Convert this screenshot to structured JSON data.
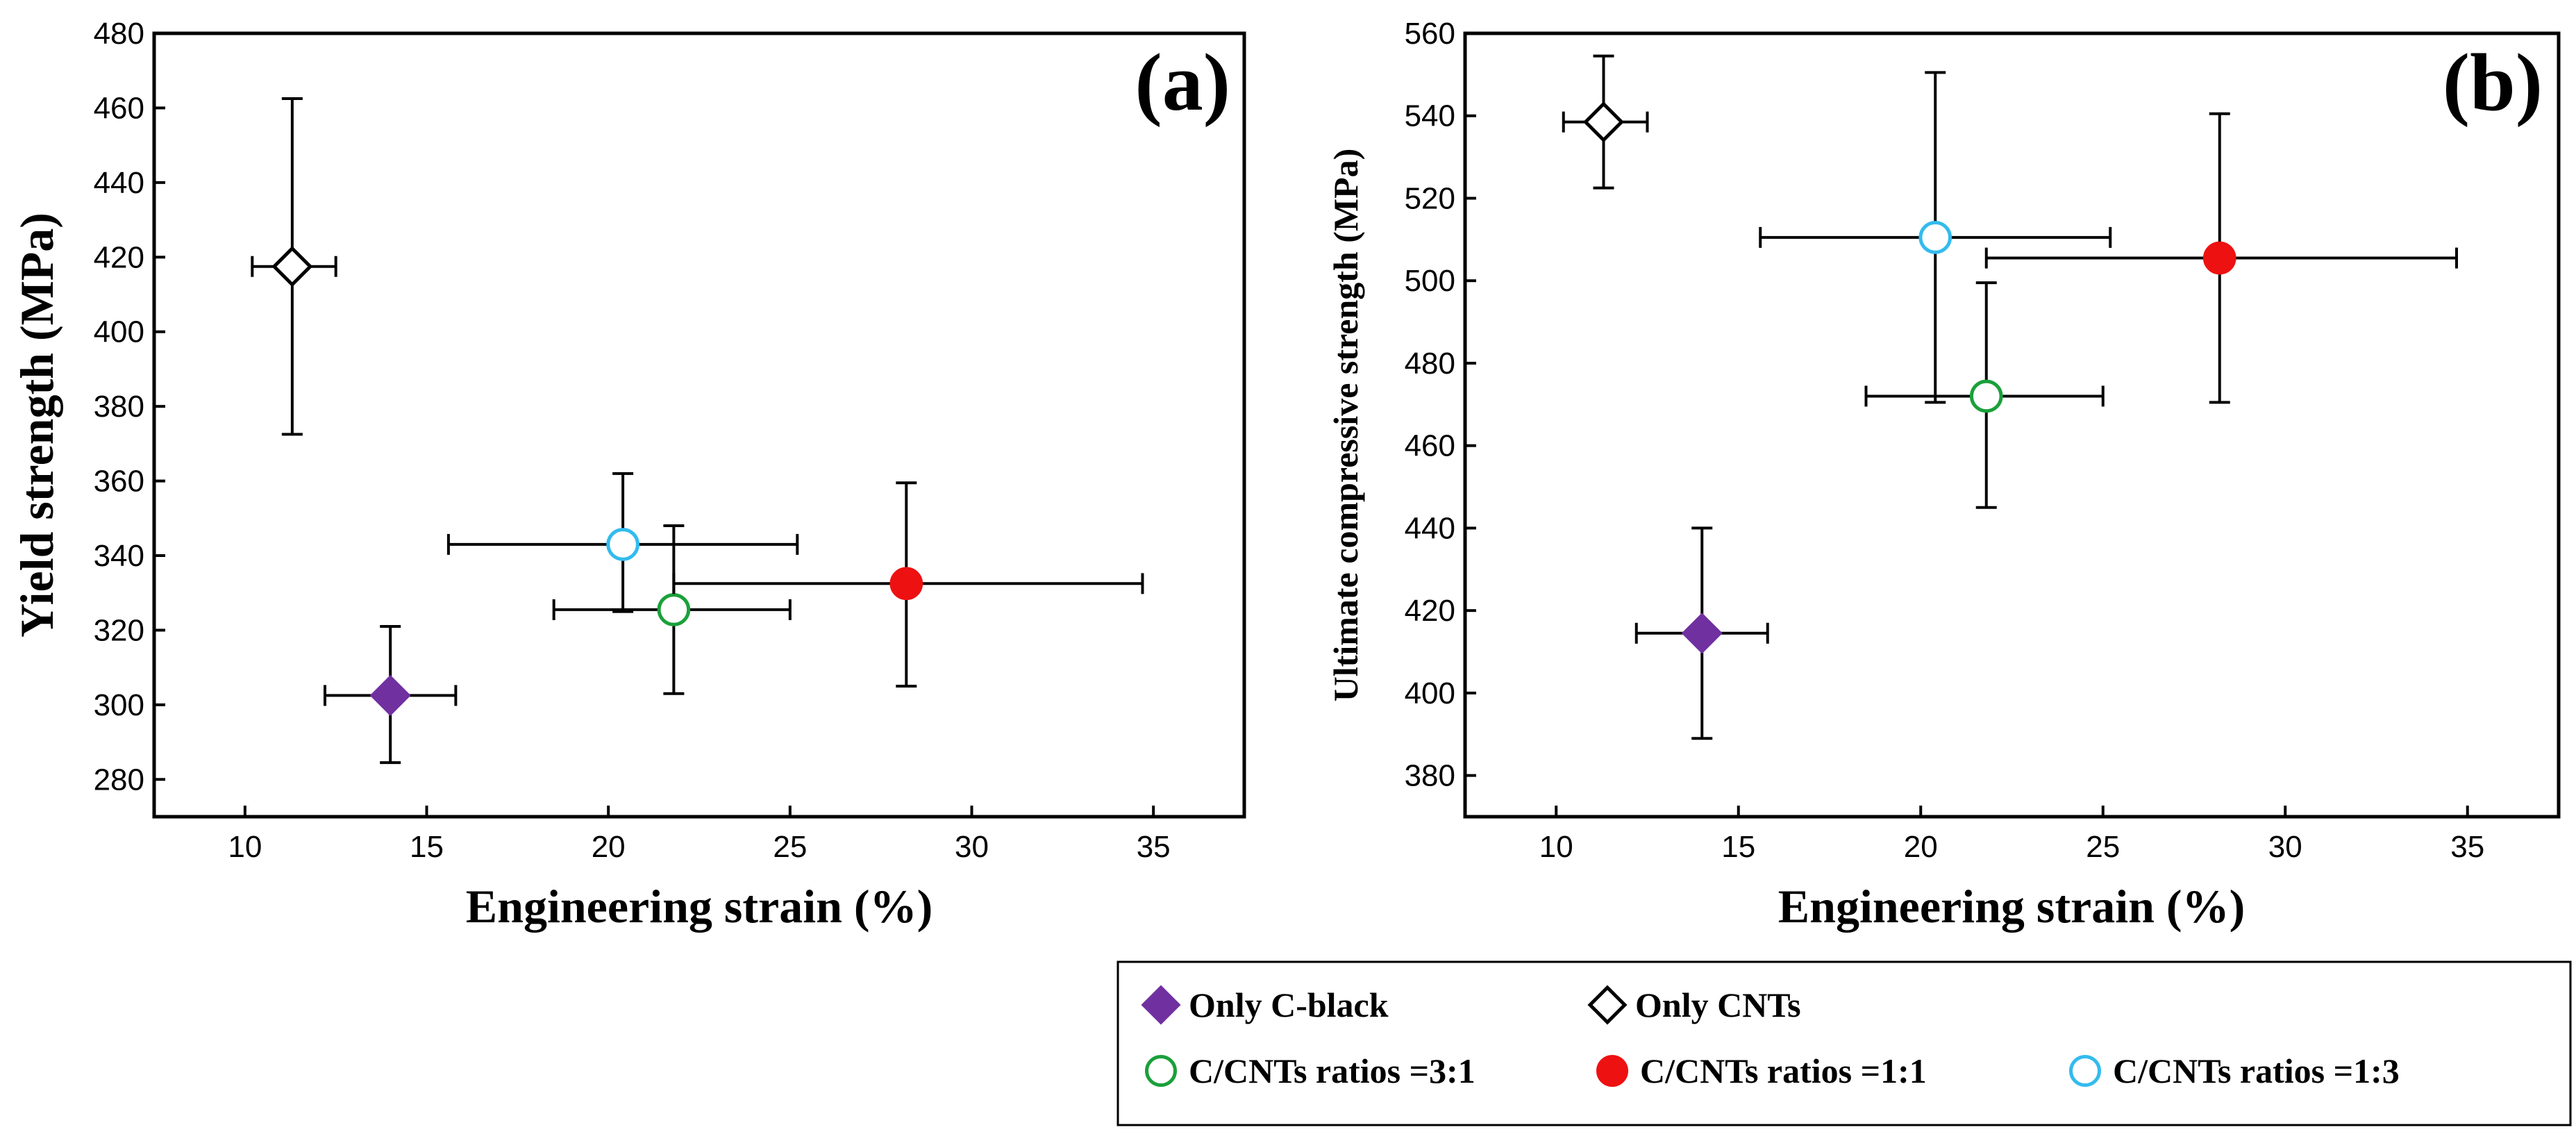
{
  "chart_data": [
    {
      "type": "scatter",
      "panel_label": "(a)",
      "xlabel": "Engineering strain (%)",
      "ylabel": "Yield strength (MPa)",
      "xlim": [
        7.5,
        37.5
      ],
      "ylim": [
        270,
        480
      ],
      "xticks": [
        10,
        15,
        20,
        25,
        30,
        35
      ],
      "yticks": [
        280,
        300,
        320,
        340,
        360,
        380,
        400,
        420,
        440,
        460,
        480
      ],
      "points": [
        {
          "series": "Only C-black",
          "x": 14.0,
          "y": 302.5,
          "xerr": [
            12.2,
            15.8
          ],
          "yerr": [
            284.5,
            321.0
          ]
        },
        {
          "series": "Only CNTs",
          "x": 11.3,
          "y": 417.5,
          "xerr": [
            10.2,
            12.5
          ],
          "yerr": [
            372.5,
            462.5
          ]
        },
        {
          "series": "C/CNTs ratios =3:1",
          "x": 21.8,
          "y": 325.5,
          "xerr": [
            18.5,
            25.0
          ],
          "yerr": [
            303.0,
            348.0
          ]
        },
        {
          "series": "C/CNTs ratios =1:1",
          "x": 28.2,
          "y": 332.5,
          "xerr": [
            21.8,
            34.7
          ],
          "yerr": [
            305.0,
            359.5
          ]
        },
        {
          "series": "C/CNTs ratios =1:3",
          "x": 20.4,
          "y": 343.0,
          "xerr": [
            15.6,
            25.2
          ],
          "yerr": [
            325.0,
            362.0
          ]
        }
      ]
    },
    {
      "type": "scatter",
      "panel_label": "(b)",
      "xlabel": "Engineering strain (%)",
      "ylabel": "Ultimate compressive strength (MPa)",
      "xlim": [
        7.5,
        37.5
      ],
      "ylim": [
        370,
        560
      ],
      "xticks": [
        10,
        15,
        20,
        25,
        30,
        35
      ],
      "yticks": [
        380,
        400,
        420,
        440,
        460,
        480,
        500,
        520,
        540,
        560
      ],
      "points": [
        {
          "series": "Only C-black",
          "x": 14.0,
          "y": 414.5,
          "xerr": [
            12.2,
            15.8
          ],
          "yerr": [
            389.0,
            440.0
          ]
        },
        {
          "series": "Only CNTs",
          "x": 11.3,
          "y": 538.5,
          "xerr": [
            10.2,
            12.5
          ],
          "yerr": [
            522.5,
            554.5
          ]
        },
        {
          "series": "C/CNTs ratios =3:1",
          "x": 21.8,
          "y": 472.0,
          "xerr": [
            18.5,
            25.0
          ],
          "yerr": [
            445.0,
            499.5
          ]
        },
        {
          "series": "C/CNTs ratios =1:1",
          "x": 28.2,
          "y": 505.5,
          "xerr": [
            21.8,
            34.7
          ],
          "yerr": [
            470.5,
            540.5
          ]
        },
        {
          "series": "C/CNTs ratios =1:3",
          "x": 20.4,
          "y": 510.5,
          "xerr": [
            15.6,
            25.2
          ],
          "yerr": [
            470.5,
            550.5
          ]
        }
      ]
    }
  ],
  "legend": {
    "placement": "bottom-right",
    "entries": [
      {
        "label": "Only C-black",
        "marker": "diamond",
        "fill": "#7030a0",
        "stroke": "#7030a0"
      },
      {
        "label": "Only CNTs",
        "marker": "diamond",
        "fill": "#ffffff",
        "stroke": "#000000"
      },
      {
        "label": "C/CNTs ratios =3:1",
        "marker": "circle",
        "fill": "#ffffff",
        "stroke": "#1aa03a"
      },
      {
        "label": "C/CNTs ratios =1:1",
        "marker": "circle",
        "fill": "#ee1111",
        "stroke": "#ee1111"
      },
      {
        "label": "C/CNTs ratios =1:3",
        "marker": "circle",
        "fill": "#ffffff",
        "stroke": "#33bbee"
      }
    ]
  }
}
